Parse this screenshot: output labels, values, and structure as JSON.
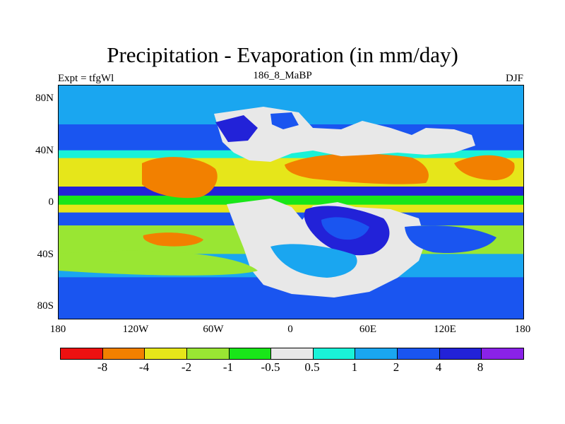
{
  "header": {
    "title": "Precipitation - Evaporation (in mm/day)",
    "left_text": "Expt = tfgWl",
    "center_text": "186_8_MaBP",
    "right_text": "DJF"
  },
  "colors": {
    "bin0": "#ee1111",
    "bin1": "#f28000",
    "bin2": "#e6e61a",
    "bin3": "#99e633",
    "bin4": "#19e619",
    "bin5": "#e8e8e8",
    "bin6": "#19f2d8",
    "bin7": "#1aa6f0",
    "bin8": "#1a55f0",
    "bin9": "#2222d8",
    "bin10": "#8a22e8"
  },
  "chart_data": {
    "type": "heatmap",
    "title": "Precipitation - Evaporation (in mm/day)",
    "subtitle": "186_8_MaBP",
    "experiment": "Expt = tfgWl",
    "season": "DJF",
    "x_ticks": [
      "180",
      "120W",
      "60W",
      "0",
      "60E",
      "120E",
      "180"
    ],
    "y_ticks": [
      "80N",
      "40N",
      "0",
      "40S",
      "80S"
    ],
    "xlim": [
      -180,
      180
    ],
    "ylim": [
      -90,
      90
    ],
    "colorbar_labels": [
      "-8",
      "-4",
      "-2",
      "-1",
      "-0.5",
      "0.5",
      "1",
      "2",
      "4",
      "8"
    ],
    "colorbar_bins": 11,
    "latitude_bands": [
      {
        "lat_from": 90,
        "lat_to": 76,
        "value": 1
      },
      {
        "lat_from": 76,
        "lat_to": 60,
        "value": 1.5
      },
      {
        "lat_from": 60,
        "lat_to": 40,
        "value": 2.5
      },
      {
        "lat_from": 40,
        "lat_to": 34,
        "value": 0.7
      },
      {
        "lat_from": 34,
        "lat_to": 12,
        "value": -3
      },
      {
        "lat_from": 12,
        "lat_to": 5,
        "value": 5
      },
      {
        "lat_from": 5,
        "lat_to": -2,
        "value": -1
      },
      {
        "lat_from": -2,
        "lat_to": -8,
        "value": -3
      },
      {
        "lat_from": -8,
        "lat_to": -18,
        "value": 2.5
      },
      {
        "lat_from": -18,
        "lat_to": -40,
        "value": -1.5
      },
      {
        "lat_from": -40,
        "lat_to": -58,
        "value": 1
      },
      {
        "lat_from": -58,
        "lat_to": -90,
        "value": 3
      }
    ]
  }
}
